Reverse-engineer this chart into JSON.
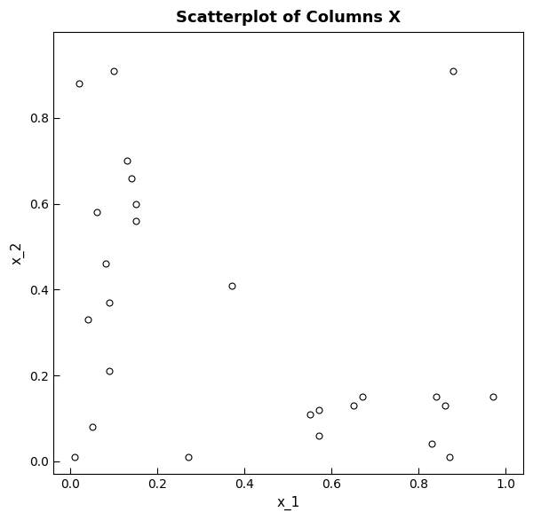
{
  "title": "Scatterplot of Columns X",
  "xlabel": "x_1",
  "ylabel": "x_2",
  "xlim": [
    -0.04,
    1.04
  ],
  "ylim": [
    -0.03,
    1.0
  ],
  "xticks": [
    0.0,
    0.2,
    0.4,
    0.6,
    0.8,
    1.0
  ],
  "yticks": [
    0.0,
    0.2,
    0.4,
    0.6,
    0.8
  ],
  "x": [
    0.01,
    0.02,
    0.04,
    0.05,
    0.06,
    0.08,
    0.09,
    0.09,
    0.1,
    0.13,
    0.14,
    0.15,
    0.27,
    0.37,
    0.55,
    0.57,
    0.57,
    0.15,
    0.65,
    0.67,
    0.83,
    0.84,
    0.86,
    0.87,
    0.88,
    0.97
  ],
  "y": [
    0.01,
    0.88,
    0.33,
    0.08,
    0.58,
    0.46,
    0.37,
    0.21,
    0.91,
    0.7,
    0.66,
    0.6,
    0.01,
    0.41,
    0.11,
    0.06,
    0.12,
    0.56,
    0.13,
    0.15,
    0.04,
    0.15,
    0.13,
    0.01,
    0.91,
    0.15
  ],
  "marker_size": 5,
  "facecolor": "white",
  "edgecolor": "black",
  "linewidth": 0.8,
  "background_color": "white",
  "title_fontsize": 13,
  "label_fontsize": 11,
  "tick_fontsize": 10
}
